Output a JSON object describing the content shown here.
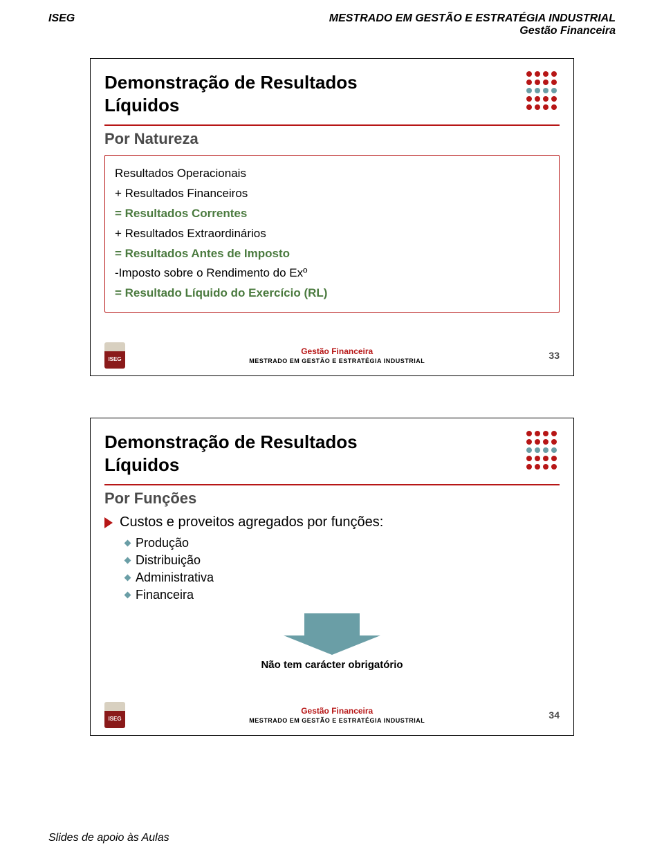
{
  "header": {
    "left": "ISEG",
    "right_line1": "MESTRADO EM GESTÃO E ESTRATÉGIA INDUSTRIAL",
    "right_line2": "Gestão Financeira",
    "font_size": 16,
    "color": "#000000"
  },
  "colors": {
    "red": "#b71616",
    "green": "#4a7a3e",
    "teal": "#6a9ea6",
    "gray_text": "#4a4a4a",
    "logo_top": "#d8d0c0",
    "logo_bot": "#8a1a1a"
  },
  "slide1": {
    "title": "Demonstração de Resultados\nLíquidos",
    "subtitle": "Por Natureza",
    "box_lines": [
      {
        "text": "Resultados Operacionais",
        "color": "#000000",
        "bold": false
      },
      {
        "text": "+ Resultados Financeiros",
        "color": "#000000",
        "bold": false
      },
      {
        "text": "= Resultados Correntes",
        "color": "#4a7a3e",
        "bold": true
      },
      {
        "text": "+ Resultados Extraordinários",
        "color": "#000000",
        "bold": false
      },
      {
        "text": "= Resultados Antes de Imposto",
        "color": "#4a7a3e",
        "bold": true
      },
      {
        "text": "-Imposto sobre o Rendimento do Exº",
        "color": "#000000",
        "bold": false
      },
      {
        "text": "= Resultado Líquido do Exercício (RL)",
        "color": "#4a7a3e",
        "bold": true
      }
    ],
    "footer_line1": "Gestão Financeira",
    "footer_line2": "MESTRADO EM GESTÃO E ESTRATÉGIA INDUSTRIAL",
    "page_num": "33"
  },
  "slide2": {
    "title": "Demonstração de Resultados\nLíquidos",
    "subtitle": "Por Funções",
    "main_bullet": "Custos e proveitos agregados por funções:",
    "sub_bullets": [
      "Produção",
      "Distribuição",
      "Administrativa",
      "Financeira"
    ],
    "arrow_color": "#6a9ea6",
    "note": "Não tem carácter obrigatório",
    "footer_line1": "Gestão Financeira",
    "footer_line2": "MESTRADO EM GESTÃO E ESTRATÉGIA INDUSTRIAL",
    "page_num": "34"
  },
  "dot_grid": {
    "colors": [
      [
        "#b71616",
        "#b71616",
        "#b71616",
        "#b71616"
      ],
      [
        "#b71616",
        "#b71616",
        "#b71616",
        "#b71616"
      ],
      [
        "#6a9ea6",
        "#6a9ea6",
        "#6a9ea6",
        "#6a9ea6"
      ],
      [
        "#b71616",
        "#b71616",
        "#b71616",
        "#b71616"
      ],
      [
        "#b71616",
        "#b71616",
        "#b71616",
        "#b71616"
      ]
    ]
  },
  "bottom_footer": "Slides de apoio às Aulas"
}
